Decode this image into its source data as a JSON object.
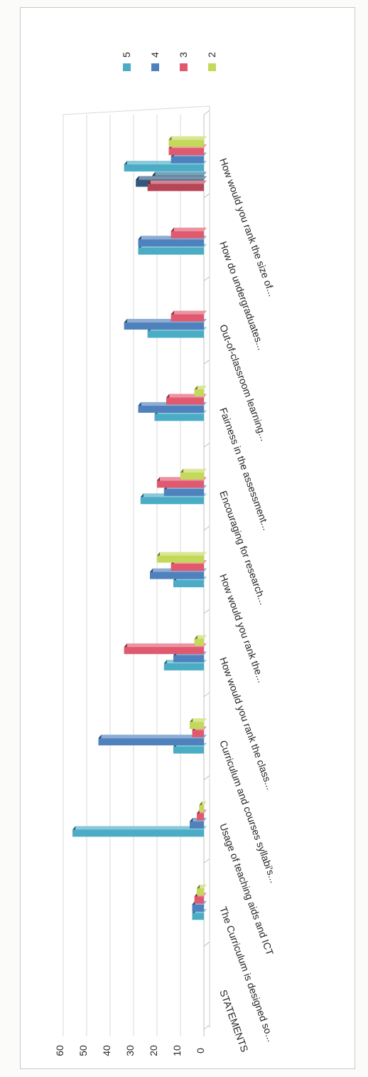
{
  "chart_data": {
    "type": "bar",
    "orientation": "rotated",
    "categories": [
      "STATEMENTS",
      "The Curriculum is designed so...",
      "Usage of teaching aids and ICT",
      "Curriculum and courses syllabi's...",
      "How would you rank the class...",
      "How would you rank the...",
      "Encouraging for research...",
      "Fairness in the assessment...",
      "Out-of-classroom learning...",
      "How do undergraduates...",
      "How would you rank the size of..."
    ],
    "series": [
      {
        "name": "5",
        "color": "#4bacc6",
        "values": [
          0,
          5,
          56,
          13,
          17,
          13,
          27,
          21,
          24,
          28,
          34
        ]
      },
      {
        "name": "4",
        "color": "#4f81bd",
        "values": [
          0,
          5,
          6,
          45,
          13,
          23,
          17,
          28,
          34,
          28,
          14
        ]
      },
      {
        "name": "3",
        "color": "#e0596f",
        "values": [
          0,
          4,
          3,
          5,
          34,
          14,
          20,
          16,
          14,
          14,
          15
        ]
      },
      {
        "name": "2",
        "color": "#c4d85a",
        "values": [
          0,
          3,
          2,
          6,
          4,
          20,
          10,
          4,
          0,
          0,
          15
        ]
      }
    ],
    "extra_bars": {
      "category": "How would you rank the size of...",
      "values": [
        22,
        29,
        24
      ]
    },
    "ylim": [
      0,
      60
    ],
    "yticks": [
      0,
      10,
      20,
      30,
      40,
      50,
      60
    ],
    "legend_position": "top-right",
    "grid": true
  }
}
